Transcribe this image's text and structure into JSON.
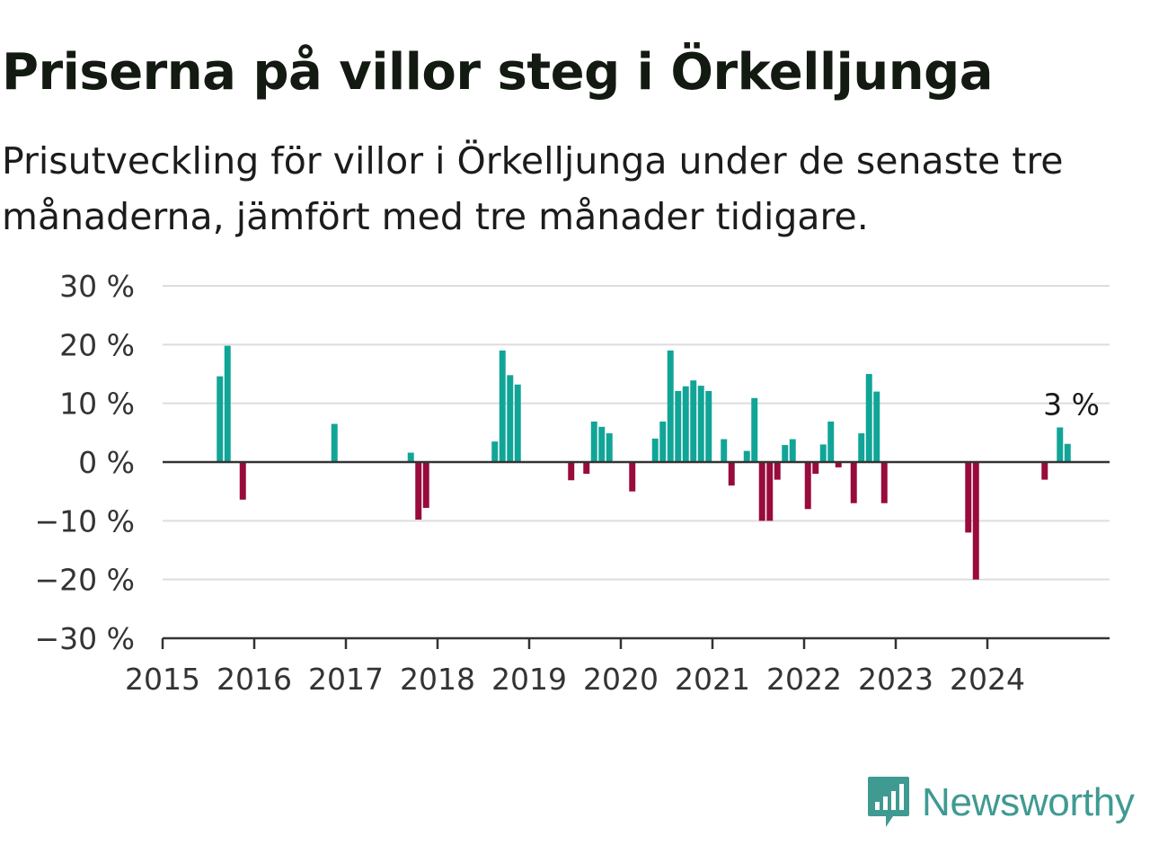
{
  "title": "Priserna på villor steg i Örkelljunga",
  "subtitle": "Prisutveckling för villor i Örkelljunga under de senaste tre månaderna, jämfört med tre månader tidigare.",
  "brand": {
    "name": "Newsworthy",
    "color": "#3f9a92",
    "icon": "newsworthy-chart-bubble-icon"
  },
  "colors": {
    "positive": "#11a598",
    "negative": "#990a3d",
    "grid": "#dddddd",
    "zero": "#333333"
  },
  "chart_data": {
    "type": "bar",
    "x_unit": "month",
    "ylim": [
      -30,
      30
    ],
    "yticks": [
      {
        "v": 30,
        "label": "30 %"
      },
      {
        "v": 20,
        "label": "20 %"
      },
      {
        "v": 10,
        "label": "10 %"
      },
      {
        "v": 0,
        "label": "0 %"
      },
      {
        "v": -10,
        "label": "−10 %"
      },
      {
        "v": -20,
        "label": "−20 %"
      },
      {
        "v": -30,
        "label": "−30 %"
      }
    ],
    "xticks": [
      "2015",
      "2016",
      "2017",
      "2018",
      "2019",
      "2020",
      "2021",
      "2022",
      "2023",
      "2024"
    ],
    "xrange": [
      "2015-01",
      "2025-05"
    ],
    "grid": true,
    "annotation": {
      "date": "2024-12",
      "label": "3 %"
    },
    "points": [
      {
        "date": "2015-08",
        "value": 14.6
      },
      {
        "date": "2015-09",
        "value": 19.8
      },
      {
        "date": "2015-11",
        "value": -6.4
      },
      {
        "date": "2016-11",
        "value": 6.5
      },
      {
        "date": "2017-09",
        "value": 1.6
      },
      {
        "date": "2017-10",
        "value": -9.8
      },
      {
        "date": "2017-11",
        "value": -7.8
      },
      {
        "date": "2018-08",
        "value": 3.5
      },
      {
        "date": "2018-09",
        "value": 19.0
      },
      {
        "date": "2018-10",
        "value": 14.8
      },
      {
        "date": "2018-11",
        "value": 13.2
      },
      {
        "date": "2019-06",
        "value": -3.1
      },
      {
        "date": "2019-08",
        "value": -2.0
      },
      {
        "date": "2019-09",
        "value": 6.9
      },
      {
        "date": "2019-10",
        "value": 6.0
      },
      {
        "date": "2019-11",
        "value": 4.9
      },
      {
        "date": "2020-02",
        "value": -5.0
      },
      {
        "date": "2020-05",
        "value": 4.0
      },
      {
        "date": "2020-06",
        "value": 6.9
      },
      {
        "date": "2020-07",
        "value": 19.0
      },
      {
        "date": "2020-08",
        "value": 12.1
      },
      {
        "date": "2020-09",
        "value": 12.9
      },
      {
        "date": "2020-10",
        "value": 13.9
      },
      {
        "date": "2020-11",
        "value": 13.0
      },
      {
        "date": "2020-12",
        "value": 12.1
      },
      {
        "date": "2021-02",
        "value": 3.9
      },
      {
        "date": "2021-03",
        "value": -4.0
      },
      {
        "date": "2021-05",
        "value": 1.9
      },
      {
        "date": "2021-06",
        "value": 10.9
      },
      {
        "date": "2021-07",
        "value": -10.0
      },
      {
        "date": "2021-08",
        "value": -10.0
      },
      {
        "date": "2021-09",
        "value": -3.0
      },
      {
        "date": "2021-10",
        "value": 2.9
      },
      {
        "date": "2021-11",
        "value": 3.9
      },
      {
        "date": "2022-01",
        "value": -8.0
      },
      {
        "date": "2022-02",
        "value": -2.0
      },
      {
        "date": "2022-03",
        "value": 3.0
      },
      {
        "date": "2022-04",
        "value": 6.9
      },
      {
        "date": "2022-05",
        "value": -0.9
      },
      {
        "date": "2022-07",
        "value": -7.0
      },
      {
        "date": "2022-08",
        "value": 4.9
      },
      {
        "date": "2022-09",
        "value": 15.0
      },
      {
        "date": "2022-10",
        "value": 12.0
      },
      {
        "date": "2022-11",
        "value": -7.0
      },
      {
        "date": "2023-10",
        "value": -12.0
      },
      {
        "date": "2023-11",
        "value": -20.0
      },
      {
        "date": "2024-08",
        "value": -3.0
      },
      {
        "date": "2024-10",
        "value": 5.9
      },
      {
        "date": "2024-11",
        "value": 3.1
      }
    ]
  }
}
